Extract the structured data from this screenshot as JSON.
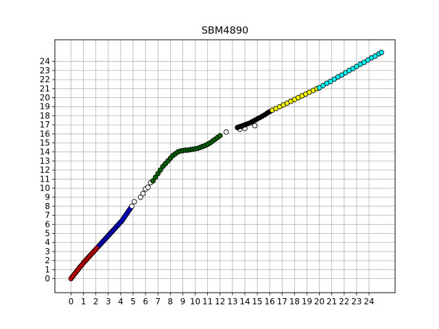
{
  "chart_data": {
    "type": "scatter",
    "title": "SBM4890",
    "xlabel": "",
    "ylabel": "",
    "xlim": [
      -1.3,
      26.1
    ],
    "ylim": [
      -1.55,
      26.4
    ],
    "grid": true,
    "x_ticks": [
      0,
      1,
      2,
      3,
      4,
      5,
      6,
      7,
      8,
      9,
      10,
      11,
      12,
      13,
      14,
      15,
      16,
      17,
      18,
      19,
      20,
      21,
      22,
      23,
      24
    ],
    "y_ticks": [
      0,
      1,
      2,
      3,
      4,
      5,
      6,
      7,
      8,
      9,
      10,
      11,
      12,
      13,
      14,
      15,
      16,
      17,
      18,
      19,
      20,
      21,
      22,
      23,
      24
    ],
    "series": [
      {
        "color": "#ff0000",
        "points": [
          [
            0.0,
            0.0
          ],
          [
            0.1,
            0.2
          ],
          [
            0.2,
            0.35
          ],
          [
            0.3,
            0.55
          ],
          [
            0.4,
            0.7
          ],
          [
            0.5,
            0.9
          ],
          [
            0.6,
            1.05
          ],
          [
            0.7,
            1.25
          ],
          [
            0.8,
            1.4
          ],
          [
            0.9,
            1.55
          ],
          [
            1.0,
            1.75
          ],
          [
            1.1,
            1.9
          ],
          [
            1.2,
            2.05
          ],
          [
            1.3,
            2.2
          ],
          [
            1.4,
            2.35
          ],
          [
            1.5,
            2.5
          ],
          [
            1.6,
            2.65
          ],
          [
            1.7,
            2.8
          ],
          [
            1.8,
            2.95
          ],
          [
            1.9,
            3.1
          ],
          [
            2.0,
            3.25
          ],
          [
            2.1,
            3.4
          ],
          [
            2.2,
            3.55
          ]
        ]
      },
      {
        "color": "#0000ff",
        "points": [
          [
            2.3,
            3.7
          ],
          [
            2.4,
            3.85
          ],
          [
            2.5,
            4.0
          ],
          [
            2.6,
            4.15
          ],
          [
            2.7,
            4.3
          ],
          [
            2.8,
            4.45
          ],
          [
            2.9,
            4.6
          ],
          [
            3.0,
            4.75
          ],
          [
            3.1,
            4.9
          ],
          [
            3.2,
            5.05
          ],
          [
            3.3,
            5.2
          ],
          [
            3.4,
            5.35
          ],
          [
            3.5,
            5.5
          ],
          [
            3.6,
            5.65
          ],
          [
            3.7,
            5.8
          ],
          [
            3.8,
            5.95
          ],
          [
            3.9,
            6.1
          ],
          [
            4.0,
            6.25
          ],
          [
            4.1,
            6.4
          ],
          [
            4.2,
            6.6
          ],
          [
            4.3,
            6.8
          ],
          [
            4.4,
            7.0
          ],
          [
            4.5,
            7.2
          ],
          [
            4.6,
            7.4
          ],
          [
            4.7,
            7.6
          ],
          [
            4.8,
            7.8
          ]
        ]
      },
      {
        "color": "#ffffff",
        "points": [
          [
            4.9,
            8.0
          ],
          [
            5.1,
            8.5
          ],
          [
            5.6,
            9.0
          ],
          [
            5.8,
            9.4
          ],
          [
            6.0,
            9.9
          ],
          [
            6.2,
            10.1
          ],
          [
            6.4,
            10.6
          ],
          [
            12.5,
            16.2
          ],
          [
            13.6,
            16.5
          ],
          [
            14.0,
            16.6
          ],
          [
            14.8,
            16.9
          ]
        ]
      },
      {
        "color": "#006400",
        "points": [
          [
            6.6,
            10.8
          ],
          [
            6.8,
            11.2
          ],
          [
            7.0,
            11.6
          ],
          [
            7.2,
            12.0
          ],
          [
            7.4,
            12.4
          ],
          [
            7.6,
            12.7
          ],
          [
            7.8,
            13.0
          ],
          [
            8.0,
            13.3
          ],
          [
            8.2,
            13.6
          ],
          [
            8.4,
            13.8
          ],
          [
            8.6,
            14.0
          ],
          [
            8.8,
            14.1
          ],
          [
            9.0,
            14.15
          ],
          [
            9.2,
            14.2
          ],
          [
            9.4,
            14.2
          ],
          [
            9.6,
            14.25
          ],
          [
            9.8,
            14.3
          ],
          [
            10.0,
            14.35
          ],
          [
            10.2,
            14.4
          ],
          [
            10.4,
            14.5
          ],
          [
            10.6,
            14.6
          ],
          [
            10.8,
            14.7
          ],
          [
            11.0,
            14.85
          ],
          [
            11.2,
            15.0
          ],
          [
            11.4,
            15.2
          ],
          [
            11.6,
            15.4
          ],
          [
            11.8,
            15.6
          ],
          [
            12.0,
            15.8
          ]
        ]
      },
      {
        "color": "#000000",
        "points": [
          [
            13.4,
            16.7
          ],
          [
            13.6,
            16.8
          ],
          [
            13.8,
            16.9
          ],
          [
            14.0,
            17.0
          ],
          [
            14.2,
            17.1
          ],
          [
            14.4,
            17.2
          ],
          [
            14.6,
            17.35
          ],
          [
            14.8,
            17.5
          ],
          [
            15.0,
            17.65
          ],
          [
            15.2,
            17.8
          ],
          [
            15.4,
            17.95
          ],
          [
            15.6,
            18.1
          ],
          [
            15.8,
            18.3
          ],
          [
            16.0,
            18.45
          ]
        ]
      },
      {
        "color": "#ffff00",
        "points": [
          [
            16.2,
            18.6
          ],
          [
            16.5,
            18.8
          ],
          [
            16.8,
            19.0
          ],
          [
            17.1,
            19.2
          ],
          [
            17.4,
            19.4
          ],
          [
            17.7,
            19.6
          ],
          [
            18.0,
            19.8
          ],
          [
            18.3,
            20.0
          ],
          [
            18.6,
            20.2
          ],
          [
            18.9,
            20.4
          ],
          [
            19.2,
            20.6
          ],
          [
            19.5,
            20.8
          ],
          [
            19.8,
            21.0
          ]
        ]
      },
      {
        "color": "#00ffff",
        "points": [
          [
            20.0,
            21.1
          ],
          [
            20.3,
            21.35
          ],
          [
            20.6,
            21.6
          ],
          [
            20.9,
            21.8
          ],
          [
            21.2,
            22.05
          ],
          [
            21.5,
            22.3
          ],
          [
            21.8,
            22.5
          ],
          [
            22.1,
            22.75
          ],
          [
            22.4,
            23.0
          ],
          [
            22.7,
            23.2
          ],
          [
            23.0,
            23.45
          ],
          [
            23.3,
            23.7
          ],
          [
            23.6,
            23.9
          ],
          [
            23.9,
            24.15
          ],
          [
            24.2,
            24.4
          ],
          [
            24.5,
            24.6
          ],
          [
            24.8,
            24.85
          ],
          [
            25.0,
            25.0
          ]
        ]
      }
    ]
  }
}
